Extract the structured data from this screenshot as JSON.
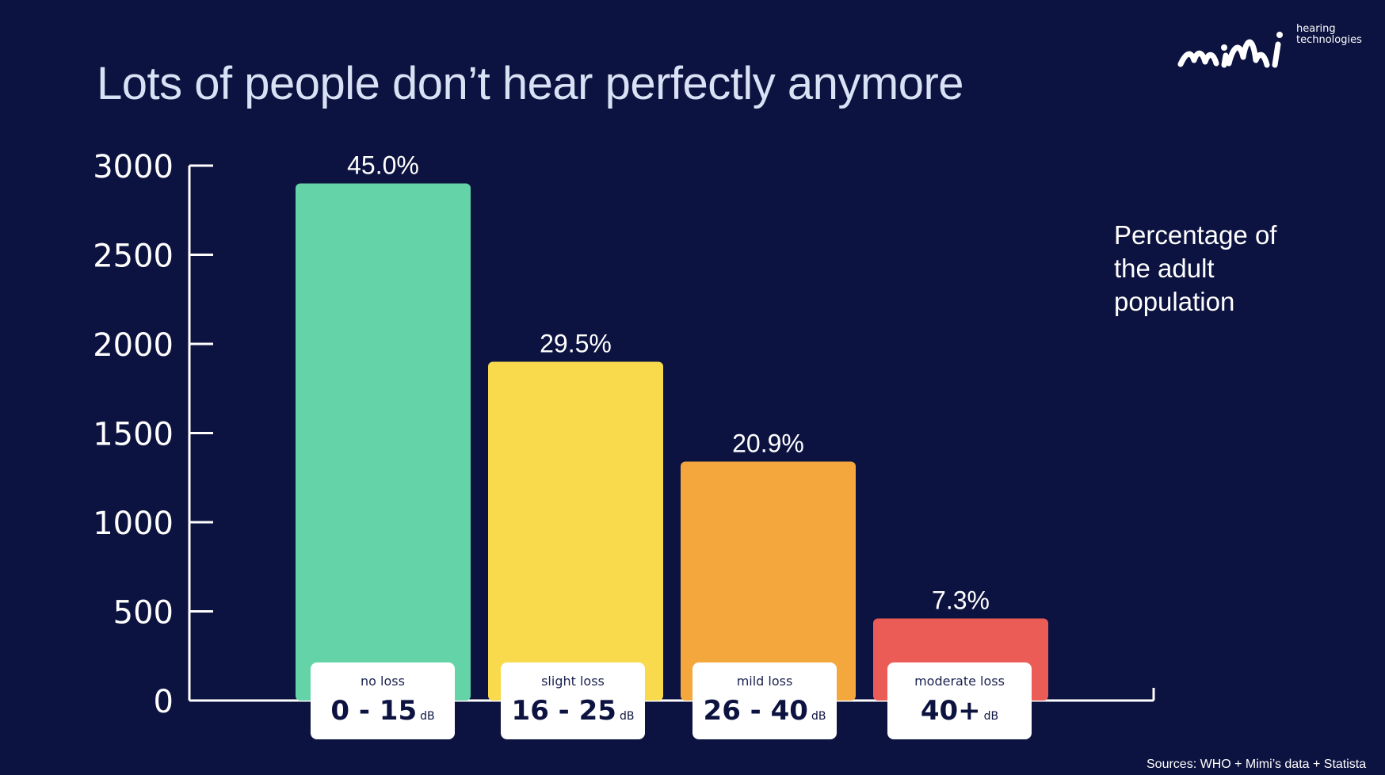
{
  "title": "Lots of people don’t hear perfectly anymore",
  "logo": {
    "brand": "mimi",
    "sub_line1": "hearing",
    "sub_line2": "technologies"
  },
  "side_note": "Percentage of the adult population",
  "sources": "Sources: WHO + Mimi’s data + Statista",
  "colors": {
    "background": "#0d1340",
    "bar_colors": [
      "#64d3a8",
      "#f9da4c",
      "#f3a73d",
      "#ec5c56"
    ]
  },
  "chart_data": {
    "type": "bar",
    "categories": [
      "no loss",
      "slight loss",
      "mild loss",
      "moderate loss"
    ],
    "ranges": [
      "0 - 15",
      "16 - 25",
      "26 - 40",
      "40+"
    ],
    "unit": "dB",
    "values": [
      2900,
      1900,
      1340,
      460
    ],
    "data_labels": [
      "45.0%",
      "29.5%",
      "20.9%",
      "7.3%"
    ],
    "ylim": [
      0,
      3000
    ],
    "yticks": [
      0,
      500,
      1000,
      1500,
      2000,
      2500,
      3000
    ],
    "title": "",
    "xlabel": "",
    "ylabel": "",
    "grid": false
  }
}
